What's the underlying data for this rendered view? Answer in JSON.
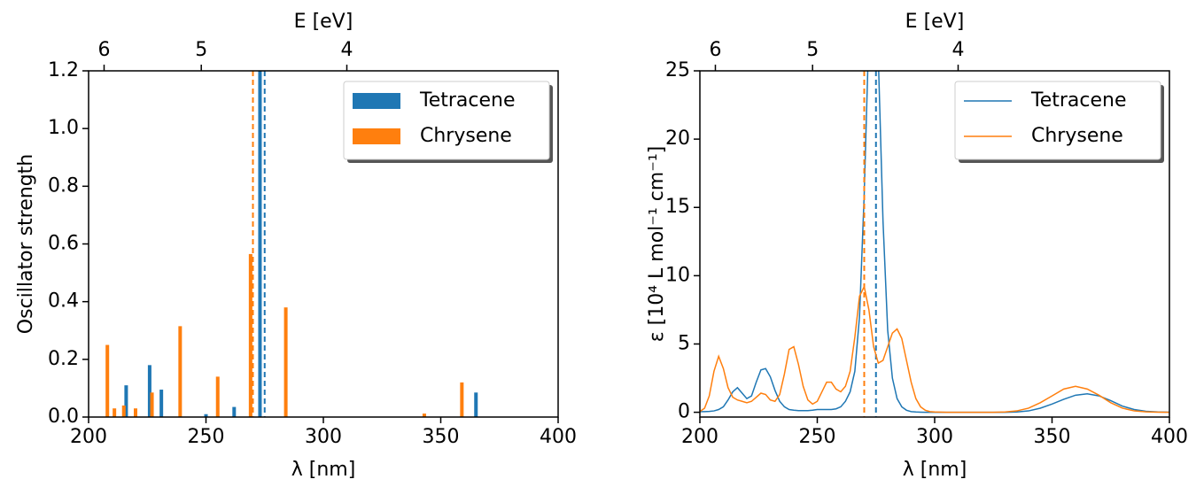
{
  "chart_data": [
    {
      "type": "bar",
      "xlabel": "λ [nm]",
      "ylabel": "Oscillator strength",
      "x2label": "E [eV]",
      "xlim": [
        200,
        400
      ],
      "xticks": [
        200,
        250,
        300,
        350,
        400
      ],
      "x2ticks": [
        {
          "value": 206.6,
          "label": "6"
        },
        {
          "value": 248,
          "label": "5"
        },
        {
          "value": 310,
          "label": "4"
        }
      ],
      "ylim": [
        0,
        1.2
      ],
      "yticks": [
        {
          "value": 0,
          "label": "0.0"
        },
        0.2,
        0.4,
        0.6,
        0.8,
        {
          "value": 1,
          "label": "1.0"
        },
        1.2
      ],
      "legend": "upper right",
      "series": [
        {
          "name": "Tetracene",
          "color": "#1f77b4",
          "dashed_line_x": 275,
          "x": [
            216,
            226,
            231,
            250,
            262,
            273,
            365
          ],
          "values": [
            0.11,
            0.18,
            0.095,
            0.01,
            0.035,
            1.25,
            0.085
          ]
        },
        {
          "name": "Chrysene",
          "color": "#ff7f0e",
          "dashed_line_x": 270,
          "x": [
            208,
            211,
            215,
            220,
            227,
            239,
            255,
            269,
            284,
            343,
            359
          ],
          "values": [
            0.25,
            0.03,
            0.04,
            0.03,
            0.085,
            0.315,
            0.14,
            0.565,
            0.38,
            0.012,
            0.12
          ]
        }
      ]
    },
    {
      "type": "line",
      "xlabel": "λ [nm]",
      "ylabel": "ε [10⁴ L mol⁻¹ cm⁻¹]",
      "x2label": "E [eV]",
      "xlim": [
        200,
        400
      ],
      "xticks": [
        200,
        250,
        300,
        350,
        400
      ],
      "x2ticks": [
        {
          "value": 206.6,
          "label": "6"
        },
        {
          "value": 248,
          "label": "5"
        },
        {
          "value": 310,
          "label": "4"
        }
      ],
      "ylim": [
        -0.35,
        25
      ],
      "yticks": [
        0,
        5,
        10,
        15,
        20,
        25
      ],
      "legend": "upper right",
      "x": [
        200,
        202,
        204,
        206,
        208,
        210,
        212,
        214,
        216,
        218,
        220,
        222,
        224,
        226,
        228,
        230,
        232,
        234,
        236,
        238,
        240,
        242,
        244,
        246,
        248,
        250,
        252,
        254,
        256,
        258,
        260,
        262,
        264,
        266,
        268,
        270,
        272,
        274,
        276,
        278,
        280,
        282,
        284,
        286,
        288,
        290,
        292,
        294,
        296,
        298,
        300,
        305,
        310,
        315,
        320,
        325,
        330,
        335,
        340,
        345,
        350,
        355,
        360,
        365,
        370,
        375,
        380,
        385,
        390,
        395,
        400
      ],
      "series": [
        {
          "name": "Tetracene",
          "color": "#1f77b4",
          "dashed_line_x": 275,
          "values": [
            0.05,
            0.05,
            0.06,
            0.1,
            0.2,
            0.4,
            0.9,
            1.5,
            1.8,
            1.4,
            1.0,
            1.2,
            2.2,
            3.1,
            3.2,
            2.6,
            1.6,
            0.8,
            0.4,
            0.2,
            0.15,
            0.12,
            0.12,
            0.12,
            0.15,
            0.2,
            0.2,
            0.2,
            0.2,
            0.25,
            0.4,
            0.8,
            1.5,
            3,
            7,
            16,
            28,
            34,
            26,
            14,
            6,
            2.5,
            1,
            0.4,
            0.15,
            0.05,
            0.02,
            0.01,
            0,
            0,
            0,
            0,
            0,
            0,
            0,
            0,
            0,
            0.02,
            0.1,
            0.3,
            0.6,
            0.95,
            1.25,
            1.35,
            1.2,
            0.85,
            0.45,
            0.2,
            0.07,
            0.02,
            0.01
          ]
        },
        {
          "name": "Chrysene",
          "color": "#ff7f0e",
          "dashed_line_x": 270,
          "values": [
            0.05,
            0.3,
            1.2,
            3.0,
            4.1,
            3.2,
            1.8,
            1.1,
            0.9,
            0.8,
            0.7,
            0.8,
            1.1,
            1.4,
            1.3,
            0.9,
            0.8,
            1.3,
            2.8,
            4.6,
            4.8,
            3.5,
            1.9,
            0.9,
            0.6,
            0.8,
            1.5,
            2.2,
            2.2,
            1.7,
            1.5,
            1.9,
            3.0,
            5.5,
            8.5,
            9.2,
            7.5,
            4.8,
            3.6,
            3.8,
            4.8,
            5.8,
            6.1,
            5.4,
            3.8,
            2.2,
            1.0,
            0.4,
            0.15,
            0.05,
            0.02,
            0,
            0,
            0,
            0,
            0,
            0.02,
            0.1,
            0.3,
            0.7,
            1.2,
            1.7,
            1.9,
            1.7,
            1.25,
            0.7,
            0.3,
            0.1,
            0.03,
            0.01,
            0
          ]
        }
      ]
    }
  ]
}
